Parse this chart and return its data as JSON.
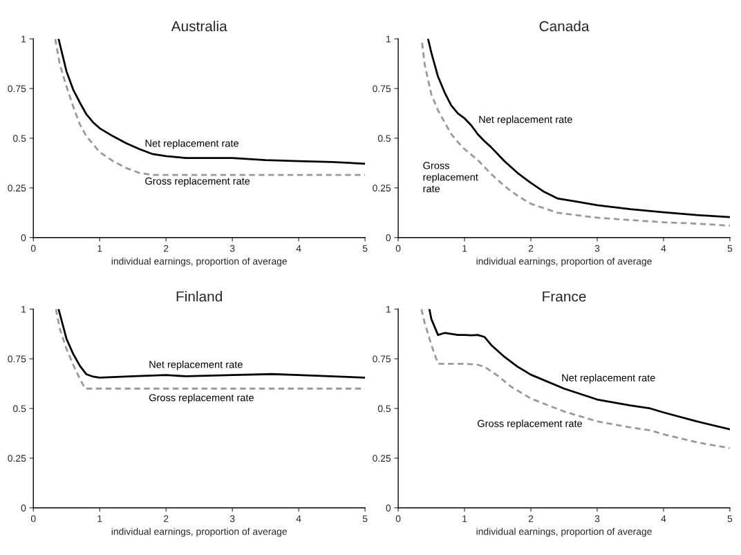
{
  "chart_data": [
    {
      "type": "line",
      "title": "Australia",
      "xlabel": "individual earnings, proportion of average",
      "xlim": [
        0,
        5
      ],
      "xticks": [
        0,
        1,
        2,
        3,
        4,
        5
      ],
      "ylim": [
        0,
        1
      ],
      "yticks": [
        0,
        {
          "value": 0.25,
          "label": "0.25"
        },
        {
          "value": 0.5,
          "label": "0.5"
        },
        {
          "value": 0.75,
          "label": "0.75"
        },
        1
      ],
      "series": [
        {
          "name": "Net replacement rate",
          "color": "#000000",
          "line_style": "solid",
          "x": [
            0.38,
            0.5,
            0.6,
            0.7,
            0.8,
            0.9,
            1.0,
            1.2,
            1.4,
            1.6,
            1.8,
            2.0,
            2.3,
            2.5,
            3.0,
            3.5,
            4.0,
            4.5,
            5.0
          ],
          "values": [
            1,
            0.836,
            0.745,
            0.68,
            0.62,
            0.58,
            0.55,
            0.51,
            0.475,
            0.445,
            0.42,
            0.41,
            0.4,
            0.4,
            0.4,
            0.39,
            0.385,
            0.38,
            0.372
          ]
        },
        {
          "name": "Gross replacement rate",
          "color": "#999999",
          "line_style": "dashed",
          "x": [
            0.33,
            0.4,
            0.5,
            0.6,
            0.7,
            0.8,
            1.0,
            1.2,
            1.4,
            1.6,
            1.8,
            5.0
          ],
          "values": [
            1,
            0.87,
            0.76,
            0.66,
            0.57,
            0.51,
            0.43,
            0.385,
            0.35,
            0.325,
            0.315,
            0.315
          ]
        }
      ]
    },
    {
      "type": "line",
      "title": "Canada",
      "xlabel": "individual earnings, proportion of average",
      "xlim": [
        0,
        5
      ],
      "xticks": [
        0,
        1,
        2,
        3,
        4,
        5
      ],
      "ylim": [
        0,
        1
      ],
      "yticks": [
        0,
        {
          "value": 0.25,
          "label": "0.25"
        },
        {
          "value": 0.5,
          "label": "0.5"
        },
        {
          "value": 0.75,
          "label": "0.75"
        },
        1
      ],
      "series": [
        {
          "name": "Net replacement rate",
          "color": "#000000",
          "line_style": "solid",
          "x": [
            0.45,
            0.5,
            0.6,
            0.7,
            0.8,
            0.9,
            1.0,
            1.1,
            1.2,
            1.3,
            1.4,
            1.6,
            1.8,
            2.0,
            2.2,
            2.4,
            2.7,
            3.0,
            3.5,
            4.0,
            4.5,
            5.0
          ],
          "values": [
            1,
            0.93,
            0.81,
            0.73,
            0.665,
            0.625,
            0.6,
            0.565,
            0.52,
            0.485,
            0.455,
            0.385,
            0.325,
            0.275,
            0.23,
            0.197,
            0.18,
            0.163,
            0.143,
            0.127,
            0.113,
            0.103
          ]
        },
        {
          "name": "Gross\nreplacement\nrate",
          "color": "#999999",
          "line_style": "dashed",
          "x": [
            0.36,
            0.4,
            0.5,
            0.6,
            0.7,
            0.8,
            0.9,
            1.0,
            1.2,
            1.4,
            1.6,
            1.8,
            2.0,
            2.4,
            3.0,
            3.5,
            4.0,
            4.5,
            5.0
          ],
          "values": [
            0.98,
            0.87,
            0.72,
            0.64,
            0.58,
            0.52,
            0.48,
            0.445,
            0.39,
            0.32,
            0.26,
            0.21,
            0.17,
            0.125,
            0.1,
            0.088,
            0.077,
            0.07,
            0.06
          ]
        }
      ]
    },
    {
      "type": "line",
      "title": "Finland",
      "xlabel": "individual earnings, proportion of average",
      "xlim": [
        0,
        5
      ],
      "xticks": [
        0,
        1,
        2,
        3,
        4,
        5
      ],
      "ylim": [
        0,
        1
      ],
      "yticks": [
        0,
        {
          "value": 0.25,
          "label": "0.25"
        },
        {
          "value": 0.5,
          "label": "0.5"
        },
        {
          "value": 0.75,
          "label": "0.75"
        },
        1
      ],
      "series": [
        {
          "name": "Net replacement rate",
          "color": "#000000",
          "line_style": "solid",
          "x": [
            0.38,
            0.5,
            0.6,
            0.7,
            0.8,
            0.9,
            1.0,
            1.5,
            2.0,
            2.3,
            3.0,
            3.6,
            4.0,
            5.0
          ],
          "values": [
            1,
            0.85,
            0.775,
            0.715,
            0.672,
            0.66,
            0.655,
            0.662,
            0.668,
            0.662,
            0.668,
            0.673,
            0.668,
            0.655
          ]
        },
        {
          "name": "Gross replacement rate",
          "color": "#999999",
          "line_style": "dashed",
          "x": [
            0.34,
            0.4,
            0.5,
            0.6,
            0.7,
            0.78,
            5.0
          ],
          "values": [
            1,
            0.9,
            0.8,
            0.72,
            0.65,
            0.6,
            0.6
          ]
        }
      ]
    },
    {
      "type": "line",
      "title": "France",
      "xlabel": "individual earnings, proportion of average",
      "xlim": [
        0,
        5
      ],
      "xticks": [
        0,
        1,
        2,
        3,
        4,
        5
      ],
      "ylim": [
        0,
        1
      ],
      "yticks": [
        0,
        {
          "value": 0.25,
          "label": "0.25"
        },
        {
          "value": 0.5,
          "label": "0.5"
        },
        {
          "value": 0.75,
          "label": "0.75"
        },
        1
      ],
      "series": [
        {
          "name": "Net replacement rate",
          "color": "#000000",
          "line_style": "solid",
          "x": [
            0.47,
            0.5,
            0.6,
            0.7,
            0.8,
            0.9,
            1.0,
            1.1,
            1.2,
            1.3,
            1.4,
            1.6,
            1.8,
            2.0,
            2.5,
            3.0,
            3.5,
            3.8,
            4.0,
            4.5,
            5.0
          ],
          "values": [
            1,
            0.95,
            0.87,
            0.88,
            0.875,
            0.87,
            0.87,
            0.868,
            0.87,
            0.86,
            0.82,
            0.76,
            0.71,
            0.67,
            0.6,
            0.545,
            0.515,
            0.5,
            0.48,
            0.435,
            0.395
          ]
        },
        {
          "name": "Gross replacement rate",
          "color": "#999999",
          "line_style": "dashed",
          "x": [
            0.35,
            0.4,
            0.5,
            0.6,
            1.0,
            1.2,
            1.3,
            1.5,
            1.7,
            2.0,
            2.5,
            3.0,
            3.5,
            3.8,
            4.0,
            4.5,
            5.0
          ],
          "values": [
            1,
            0.93,
            0.82,
            0.725,
            0.725,
            0.72,
            0.71,
            0.665,
            0.61,
            0.55,
            0.485,
            0.435,
            0.405,
            0.39,
            0.37,
            0.33,
            0.3
          ]
        }
      ]
    }
  ]
}
